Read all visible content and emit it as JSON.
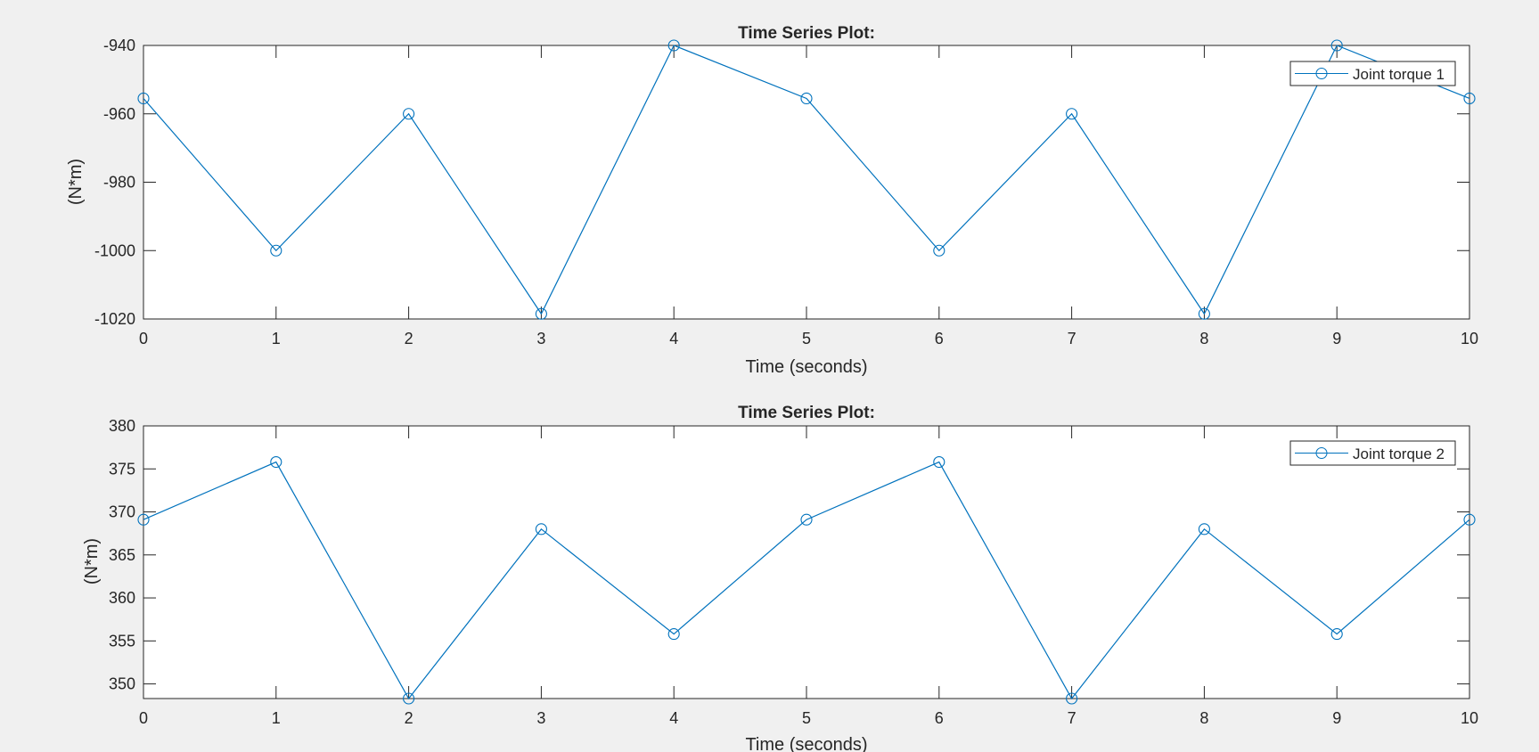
{
  "figure": {
    "background": "#f0f0f0",
    "line_color": "#0072bd"
  },
  "chart_data": [
    {
      "type": "line",
      "title": "Time Series Plot:",
      "xlabel": "Time (seconds)",
      "ylabel": "(N*m)",
      "xlim": [
        0,
        10
      ],
      "ylim": [
        -1020,
        -940
      ],
      "xticks": [
        0,
        1,
        2,
        3,
        4,
        5,
        6,
        7,
        8,
        9,
        10
      ],
      "yticks": [
        -940,
        -960,
        -980,
        -1000,
        -1020
      ],
      "legend_position": "top-right",
      "marker": "circle",
      "series": [
        {
          "name": "Joint torque 1",
          "color": "#0072bd",
          "x": [
            0,
            1,
            2,
            3,
            4,
            5,
            6,
            7,
            8,
            9,
            10
          ],
          "y": [
            -955.5,
            -1000,
            -960,
            -1018.5,
            -940,
            -955.5,
            -1000,
            -960,
            -1018.5,
            -940,
            -955.5
          ]
        }
      ]
    },
    {
      "type": "line",
      "title": "Time Series Plot:",
      "xlabel": "Time (seconds)",
      "ylabel": "(N*m)",
      "xlim": [
        0,
        10
      ],
      "ylim": [
        348.3,
        380
      ],
      "xticks": [
        0,
        1,
        2,
        3,
        4,
        5,
        6,
        7,
        8,
        9,
        10
      ],
      "yticks": [
        350,
        355,
        360,
        365,
        370,
        375,
        380
      ],
      "legend_position": "top-right",
      "marker": "circle",
      "series": [
        {
          "name": "Joint torque 2",
          "color": "#0072bd",
          "x": [
            0,
            1,
            2,
            3,
            4,
            5,
            6,
            7,
            8,
            9,
            10
          ],
          "y": [
            369.1,
            375.8,
            348.3,
            368.0,
            355.8,
            369.1,
            375.8,
            348.3,
            368.0,
            355.8,
            369.1
          ]
        }
      ]
    }
  ]
}
